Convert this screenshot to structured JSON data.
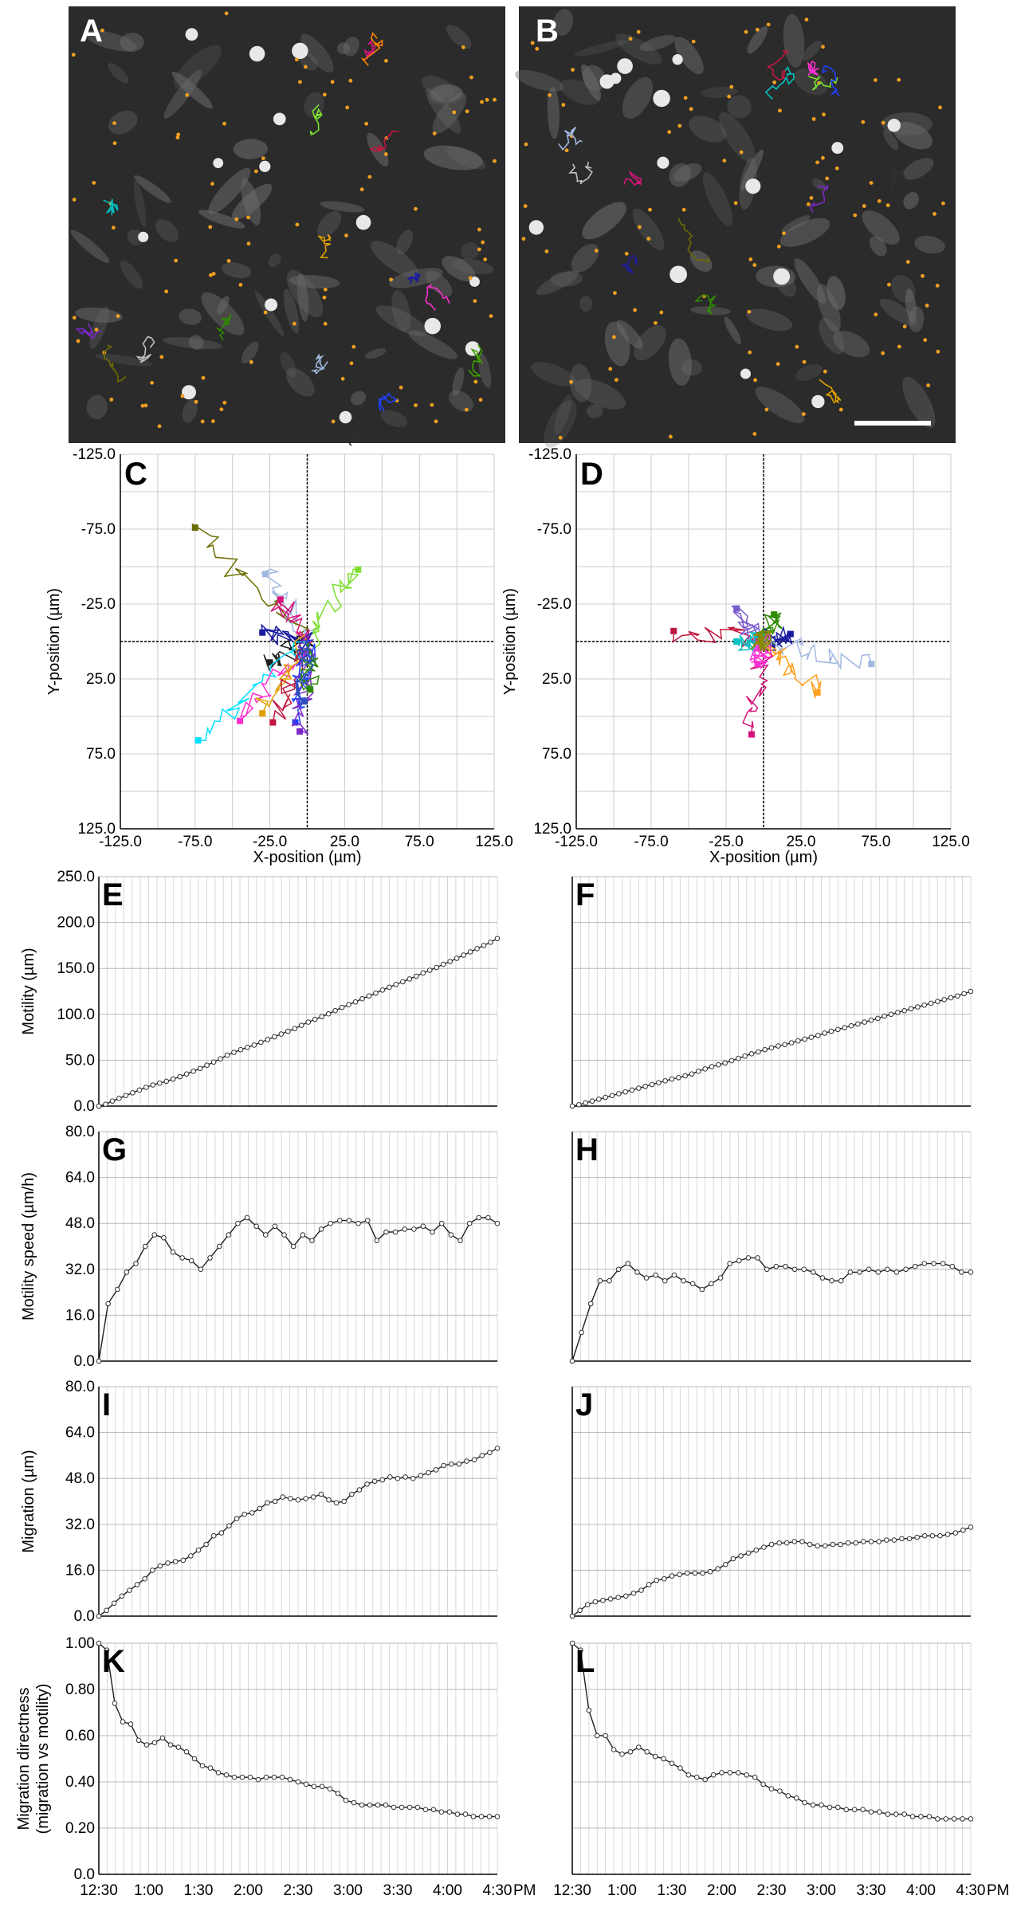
{
  "figure": {
    "micrographs": [
      {
        "panel": "A",
        "label": "A"
      },
      {
        "panel": "B",
        "label": "B"
      }
    ],
    "colors": {
      "tracks": [
        "#6b6b00",
        "#c0c0c0",
        "#2e8b00",
        "#00c0c0",
        "#1a1aa0",
        "#d4147a",
        "#e0a000",
        "#7a28c8",
        "#a0b8e0",
        "#c01840",
        "#7be030",
        "#ff30d0",
        "#2040ff",
        "#303030",
        "#40a000",
        "#ff8000"
      ],
      "centroid": "#f0a020",
      "line": "#202020",
      "grid": "#cccccc"
    }
  },
  "chart_data": [
    {
      "panel": "C",
      "label": "C",
      "type": "scatter",
      "title": "",
      "xlabel": "X-position (µm)",
      "ylabel": "Y-position (µm)",
      "xlim": [
        -125,
        125
      ],
      "ylim": [
        125,
        -125
      ],
      "xticks": [
        "-125.0",
        "-75.0",
        "-25.0",
        "25.0",
        "75.0",
        "125.0"
      ],
      "yticks": [
        "-125.0",
        "-75.0",
        "-25.0",
        "25.0",
        "75.0",
        "125.0"
      ],
      "endpoints": [
        {
          "x": -75,
          "y": -76,
          "color": "#6b6b00"
        },
        {
          "x": -28,
          "y": -45,
          "color": "#a0b8e0"
        },
        {
          "x": 34,
          "y": -48,
          "color": "#7be030"
        },
        {
          "x": -18,
          "y": -28,
          "color": "#d4147a"
        },
        {
          "x": -30,
          "y": -6,
          "color": "#1a1aa0"
        },
        {
          "x": -25,
          "y": 14,
          "color": "#202020"
        },
        {
          "x": -73,
          "y": 66,
          "color": "#00e0ff"
        },
        {
          "x": -45,
          "y": 53,
          "color": "#ff30d0"
        },
        {
          "x": -30,
          "y": 48,
          "color": "#e0a000"
        },
        {
          "x": -23,
          "y": 54,
          "color": "#c01840"
        },
        {
          "x": -8,
          "y": 54,
          "color": "#2040ff"
        },
        {
          "x": -5,
          "y": 60,
          "color": "#7a28c8"
        },
        {
          "x": 2,
          "y": 32,
          "color": "#2e8b00"
        },
        {
          "x": -2,
          "y": 40,
          "color": "#3050c0"
        }
      ]
    },
    {
      "panel": "D",
      "label": "D",
      "type": "scatter",
      "title": "",
      "xlabel": "X-position (µm)",
      "ylabel": "Y-position (µm)",
      "xlim": [
        -125,
        125
      ],
      "ylim": [
        125,
        -125
      ],
      "xticks": [
        "-125.0",
        "-75.0",
        "-25.0",
        "25.0",
        "75.0",
        "125.0"
      ],
      "yticks": [
        "-125.0",
        "-75.0",
        "-25.0",
        "25.0",
        "75.0",
        "125.0"
      ],
      "endpoints": [
        {
          "x": -60,
          "y": -7,
          "color": "#c01840"
        },
        {
          "x": -18,
          "y": -22,
          "color": "#7a5ad0"
        },
        {
          "x": 7,
          "y": -18,
          "color": "#2e8b00"
        },
        {
          "x": 18,
          "y": -5,
          "color": "#1a1aa0"
        },
        {
          "x": 72,
          "y": 15,
          "color": "#a0b8e0"
        },
        {
          "x": 36,
          "y": 34,
          "color": "#ffa020"
        },
        {
          "x": -8,
          "y": 62,
          "color": "#d4147a"
        },
        {
          "x": -18,
          "y": 0,
          "color": "#00c0c0"
        },
        {
          "x": -4,
          "y": 15,
          "color": "#ff30d0"
        },
        {
          "x": -2,
          "y": 0,
          "color": "#8a8a00"
        }
      ]
    },
    {
      "panel": "E",
      "label": "E",
      "type": "line",
      "ylabel": "Motility (µm)",
      "ylim": [
        0,
        250
      ],
      "yticks": [
        "0.0",
        "50.0",
        "100.0",
        "150.0",
        "200.0",
        "250.0"
      ],
      "series": [
        {
          "name": "E",
          "values": [
            0,
            2,
            5.5,
            8.5,
            11.5,
            14.5,
            17.5,
            20.5,
            23,
            25,
            27,
            29.5,
            32,
            35,
            38,
            41,
            44.5,
            48,
            51.5,
            55.5,
            58.5,
            61.5,
            64,
            66.5,
            69.5,
            72.5,
            75.5,
            78.5,
            81.5,
            84.5,
            88,
            91.5,
            94.5,
            97.5,
            100.5,
            104,
            107.5,
            110.5,
            113.5,
            117,
            120,
            123,
            126.5,
            129.5,
            132.5,
            135.5,
            138.5,
            141.5,
            145,
            148,
            151,
            154.5,
            157.5,
            161,
            164.5,
            168,
            171.5,
            175,
            178.5,
            182.5
          ]
        }
      ]
    },
    {
      "panel": "F",
      "label": "F",
      "type": "line",
      "ylabel": "",
      "ylim": [
        0,
        250
      ],
      "yticks": [],
      "series": [
        {
          "name": "F",
          "values": [
            0,
            1.5,
            3.5,
            5.5,
            7.5,
            9.5,
            11.5,
            13.5,
            15.5,
            17.5,
            19.5,
            21.5,
            23.5,
            25.5,
            27.5,
            29.5,
            31,
            33,
            35,
            38,
            40.5,
            43,
            45,
            47,
            49.5,
            52,
            54.5,
            57,
            59,
            61.5,
            63.5,
            65.5,
            67,
            69,
            71,
            73,
            75,
            77,
            79.5,
            81.5,
            83.5,
            85.5,
            87.5,
            89.5,
            91.5,
            93.5,
            95.5,
            98,
            100,
            102,
            104,
            106,
            108,
            110,
            112,
            114,
            116,
            118,
            120,
            122.5,
            125
          ]
        }
      ]
    },
    {
      "panel": "G",
      "label": "G",
      "type": "line",
      "ylabel": "Motility speed (µm/h)",
      "ylim": [
        0,
        80
      ],
      "yticks": [
        "0.0",
        "16.0",
        "32.0",
        "48.0",
        "64.0",
        "80.0"
      ],
      "series": [
        {
          "name": "G",
          "values": [
            0,
            20,
            25,
            31,
            34,
            40,
            44,
            43,
            38,
            36,
            35,
            32,
            36,
            40,
            44,
            48,
            50,
            47,
            44,
            47,
            44,
            40,
            44,
            42,
            46,
            48,
            49,
            49,
            48,
            49,
            42,
            45,
            45,
            46,
            46,
            47,
            45,
            48,
            44,
            42,
            48,
            50,
            50,
            48
          ]
        }
      ]
    },
    {
      "panel": "H",
      "label": "H",
      "type": "line",
      "ylabel": "",
      "ylim": [
        0,
        80
      ],
      "yticks": [],
      "series": [
        {
          "name": "H",
          "values": [
            0,
            10,
            20,
            28,
            28,
            32,
            34,
            31,
            29,
            30,
            28,
            30,
            28,
            27,
            25,
            27,
            29,
            34,
            35,
            36,
            36,
            32,
            33,
            33,
            32,
            32,
            31,
            29,
            28,
            28,
            31,
            31,
            32,
            31,
            32,
            31,
            32,
            33,
            34,
            34,
            34,
            33,
            31,
            31
          ]
        }
      ]
    },
    {
      "panel": "I",
      "label": "I",
      "type": "line",
      "ylabel": "Migration (µm)",
      "ylim": [
        0,
        80
      ],
      "yticks": [
        "0.0",
        "16.0",
        "32.0",
        "48.0",
        "64.0",
        "80.0"
      ],
      "series": [
        {
          "name": "I",
          "values": [
            0,
            2,
            4.5,
            7,
            9,
            11,
            13,
            16,
            17.5,
            18.5,
            19,
            19.5,
            21,
            23,
            25,
            28,
            29,
            31.5,
            34,
            35.5,
            36,
            37.5,
            39.5,
            40,
            41.5,
            41,
            40.5,
            41,
            41.5,
            42.5,
            40.5,
            39.5,
            40,
            42.5,
            44,
            46,
            47,
            47.5,
            48.5,
            48,
            48.5,
            48,
            49,
            50,
            51,
            52.5,
            53,
            53,
            54,
            54.5,
            56,
            57,
            58.5
          ]
        }
      ]
    },
    {
      "panel": "J",
      "label": "J",
      "type": "line",
      "ylabel": "",
      "ylim": [
        0,
        80
      ],
      "yticks": [],
      "series": [
        {
          "name": "J",
          "values": [
            0,
            2,
            4,
            5,
            5.5,
            6,
            6.5,
            7,
            8,
            9,
            11,
            12.5,
            13,
            14,
            14.5,
            15,
            15,
            15,
            15.5,
            16.5,
            18,
            20,
            21,
            22,
            23,
            24,
            25,
            25.5,
            25.5,
            26,
            26,
            25,
            24.5,
            24.5,
            25,
            25,
            25.5,
            25.5,
            26,
            26,
            26,
            26.5,
            26.5,
            27,
            27,
            27.5,
            28,
            28,
            28,
            28.5,
            29,
            30,
            31
          ]
        }
      ]
    },
    {
      "panel": "K",
      "label": "K",
      "type": "line",
      "ylabel": "Migration directness (migration vs motility)",
      "ylim": [
        0,
        1
      ],
      "yticks": [
        "0.0",
        "0.20",
        "0.40",
        "0.60",
        "0.80",
        "1.00"
      ],
      "xticks": [
        "12:30",
        "1:00",
        "1:30",
        "2:00",
        "2:30",
        "3:00",
        "3:30",
        "4:00",
        "4:30"
      ],
      "x_suffix": "PM",
      "series": [
        {
          "name": "K",
          "values": [
            1,
            0.97,
            0.74,
            0.66,
            0.65,
            0.58,
            0.56,
            0.57,
            0.59,
            0.56,
            0.55,
            0.53,
            0.5,
            0.47,
            0.46,
            0.44,
            0.43,
            0.42,
            0.42,
            0.42,
            0.41,
            0.42,
            0.42,
            0.42,
            0.41,
            0.4,
            0.39,
            0.38,
            0.38,
            0.37,
            0.35,
            0.32,
            0.31,
            0.3,
            0.3,
            0.3,
            0.3,
            0.29,
            0.29,
            0.29,
            0.29,
            0.28,
            0.28,
            0.27,
            0.27,
            0.26,
            0.26,
            0.25,
            0.25,
            0.25,
            0.25
          ]
        }
      ]
    },
    {
      "panel": "L",
      "label": "L",
      "type": "line",
      "ylabel": "",
      "ylim": [
        0,
        1
      ],
      "yticks": [],
      "xticks": [
        "12:30",
        "1:00",
        "1:30",
        "2:00",
        "2:30",
        "3:00",
        "3:30",
        "4:00",
        "4:30"
      ],
      "x_suffix": "PM",
      "series": [
        {
          "name": "L",
          "values": [
            1,
            0.97,
            0.71,
            0.6,
            0.6,
            0.54,
            0.52,
            0.53,
            0.55,
            0.53,
            0.51,
            0.5,
            0.48,
            0.46,
            0.43,
            0.42,
            0.41,
            0.43,
            0.44,
            0.44,
            0.44,
            0.43,
            0.42,
            0.39,
            0.37,
            0.36,
            0.34,
            0.33,
            0.31,
            0.3,
            0.3,
            0.29,
            0.29,
            0.28,
            0.28,
            0.28,
            0.27,
            0.27,
            0.26,
            0.26,
            0.26,
            0.25,
            0.25,
            0.25,
            0.24,
            0.24,
            0.24,
            0.24,
            0.24
          ]
        }
      ]
    }
  ]
}
